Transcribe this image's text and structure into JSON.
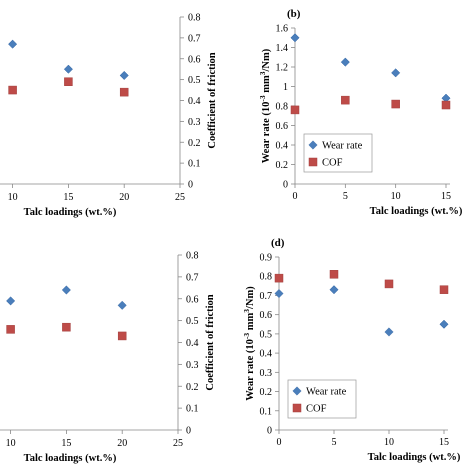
{
  "chart_data": [
    {
      "type": "scatter",
      "panel": "a",
      "panel_label": "",
      "visible": "right portion only",
      "xlabel": "Talc loadings (wt.%)",
      "ylabel_left": "",
      "ylabel_right": "Coefficient of friction",
      "xlim": [
        0,
        25
      ],
      "x_ticks": [
        "10",
        "15",
        "20",
        "25"
      ],
      "y_right_lim": [
        0,
        0.8
      ],
      "y_right_ticks": [
        "0",
        "0.1",
        "0.2",
        "0.3",
        "0.4",
        "0.5",
        "0.6",
        "0.7",
        "0.8"
      ],
      "grid": false,
      "series": [
        {
          "role": "wear_rate",
          "marker": "diamond",
          "color": "#4a7ebb",
          "axis": "left",
          "x": [
            10,
            15,
            20
          ],
          "y_on_right_scale": [
            0.67,
            0.55,
            0.52
          ]
        },
        {
          "role": "cof",
          "marker": "square",
          "color": "#be4b48",
          "axis": "right",
          "x": [
            10,
            15,
            20
          ],
          "y": [
            0.45,
            0.49,
            0.44
          ]
        }
      ]
    },
    {
      "type": "scatter",
      "panel": "b",
      "panel_label": "(b)",
      "xlabel": "Talc loadings (wt.%)",
      "ylabel_left": "Wear rate (10-3 mm3/Nm)",
      "ylabel_left_parts": [
        "Wear rate (10",
        "-3",
        " mm",
        "3",
        "/Nm)"
      ],
      "xlim": [
        0,
        15
      ],
      "x_ticks": [
        "0",
        "5",
        "10",
        "15"
      ],
      "ylim": [
        0,
        1.6
      ],
      "y_ticks": [
        "0",
        "0.2",
        "0.4",
        "0.6",
        "0.8",
        "1",
        "1.2",
        "1.4",
        "1.6"
      ],
      "grid": false,
      "legend": {
        "position": "bottom-left",
        "entries": [
          "Wear rate",
          "COF"
        ]
      },
      "series": [
        {
          "name": "Wear rate",
          "marker": "diamond",
          "color": "#4a7ebb",
          "axis": "left",
          "x": [
            0,
            5,
            10,
            15
          ],
          "y": [
            1.5,
            1.25,
            1.14,
            0.88
          ]
        },
        {
          "name": "COF",
          "marker": "square",
          "color": "#be4b48",
          "axis": "left",
          "x": [
            0,
            5,
            10,
            15
          ],
          "y": [
            0.76,
            0.86,
            0.82,
            0.81
          ]
        }
      ]
    },
    {
      "type": "scatter",
      "panel": "c",
      "panel_label": "",
      "visible": "right portion only",
      "xlabel": "Talc loadings (wt.%)",
      "ylabel_left": "",
      "ylabel_right": "Coefficient of friction",
      "xlim": [
        0,
        25
      ],
      "x_ticks": [
        "10",
        "15",
        "20",
        "25"
      ],
      "y_right_lim": [
        0,
        0.8
      ],
      "y_right_ticks": [
        "0",
        "0.1",
        "0.2",
        "0.3",
        "0.4",
        "0.5",
        "0.6",
        "0.7",
        "0.8"
      ],
      "grid": false,
      "series": [
        {
          "role": "wear_rate",
          "marker": "diamond",
          "color": "#4a7ebb",
          "axis": "left",
          "x": [
            10,
            15,
            20
          ],
          "y_on_right_scale": [
            0.59,
            0.64,
            0.57
          ]
        },
        {
          "role": "cof",
          "marker": "square",
          "color": "#be4b48",
          "axis": "right",
          "x": [
            10,
            15,
            20
          ],
          "y": [
            0.46,
            0.47,
            0.43
          ]
        }
      ]
    },
    {
      "type": "scatter",
      "panel": "d",
      "panel_label": "(d)",
      "xlabel": "Talc loadings (wt.%)",
      "ylabel_left": "Wear rate (10-3 mm3/Nm)",
      "ylabel_left_parts": [
        "Wear rate (10",
        "-3",
        " mm",
        "3",
        "/Nm)"
      ],
      "xlim": [
        0,
        15
      ],
      "x_ticks": [
        "0",
        "5",
        "10",
        "15"
      ],
      "ylim": [
        0,
        0.9
      ],
      "y_ticks": [
        "0",
        "0.1",
        "0.2",
        "0.3",
        "0.4",
        "0.5",
        "0.6",
        "0.7",
        "0.8",
        "0.9"
      ],
      "grid": false,
      "legend": {
        "position": "bottom-left",
        "entries": [
          "Wear rate",
          "COF"
        ]
      },
      "series": [
        {
          "name": "Wear rate",
          "marker": "diamond",
          "color": "#4a7ebb",
          "axis": "left",
          "x": [
            0,
            5,
            10,
            15
          ],
          "y": [
            0.71,
            0.73,
            0.51,
            0.55
          ]
        },
        {
          "name": "COF",
          "marker": "square",
          "color": "#be4b48",
          "axis": "left",
          "x": [
            0,
            5,
            10,
            15
          ],
          "y": [
            0.79,
            0.81,
            0.76,
            0.73
          ]
        }
      ]
    }
  ]
}
